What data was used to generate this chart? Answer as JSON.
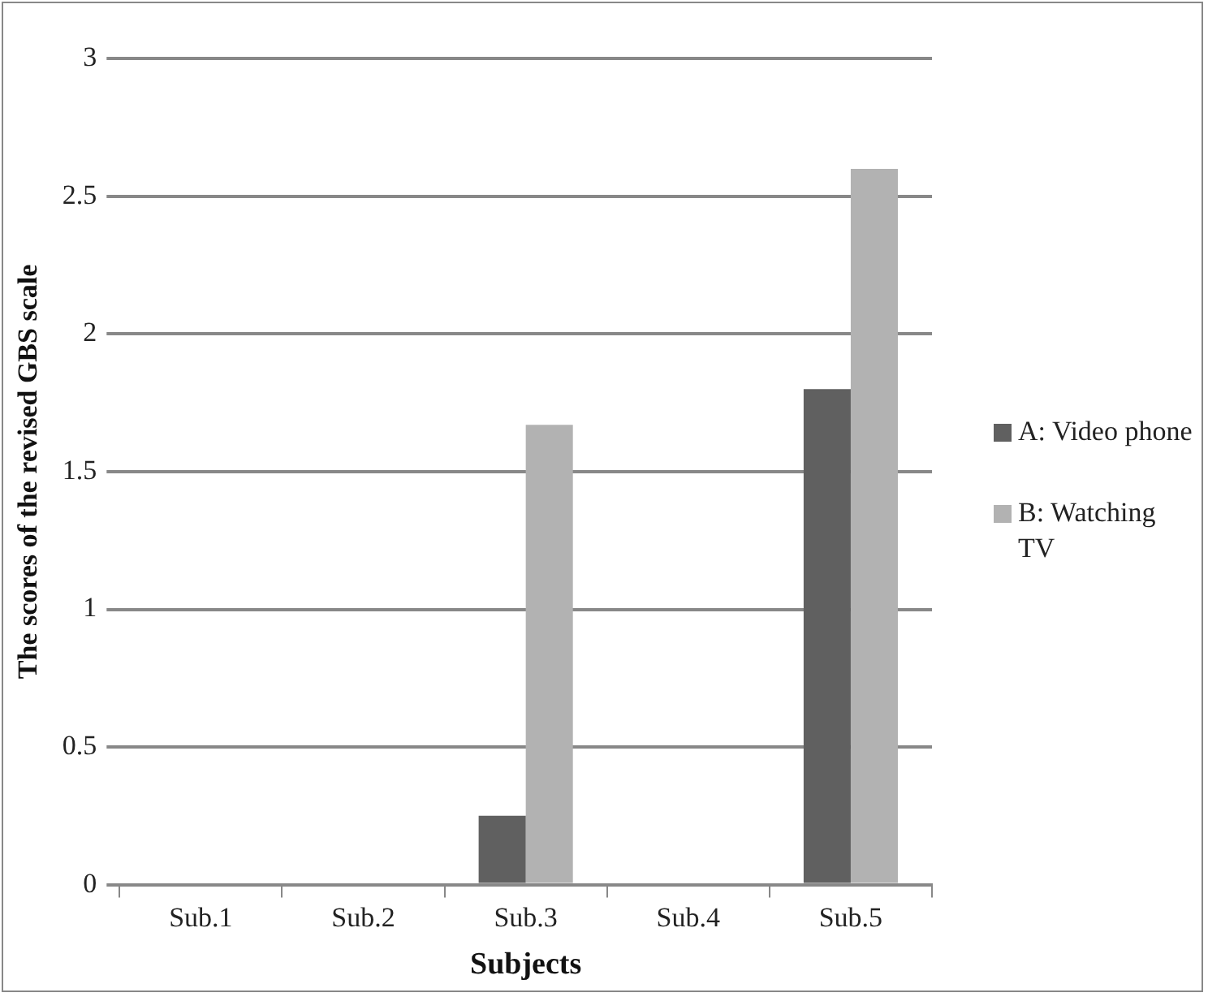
{
  "chart_data": {
    "type": "bar",
    "xlabel": "Subjects",
    "ylabel": "The scores of the revised GBS scale",
    "categories": [
      "Sub.1",
      "Sub.2",
      "Sub.3",
      "Sub.4",
      "Sub.5"
    ],
    "series": [
      {
        "name": "A: Video phone",
        "color": "#606060",
        "values": [
          0,
          0,
          0.25,
          0,
          1.8
        ]
      },
      {
        "name": "B: Watching TV",
        "color": "#b2b2b2",
        "values": [
          0,
          0,
          1.67,
          0,
          2.6
        ]
      }
    ],
    "ylim": [
      0,
      3
    ],
    "yticks": [
      0,
      0.5,
      1,
      1.5,
      2,
      2.5,
      3
    ],
    "grid": "y",
    "legend": "right"
  }
}
